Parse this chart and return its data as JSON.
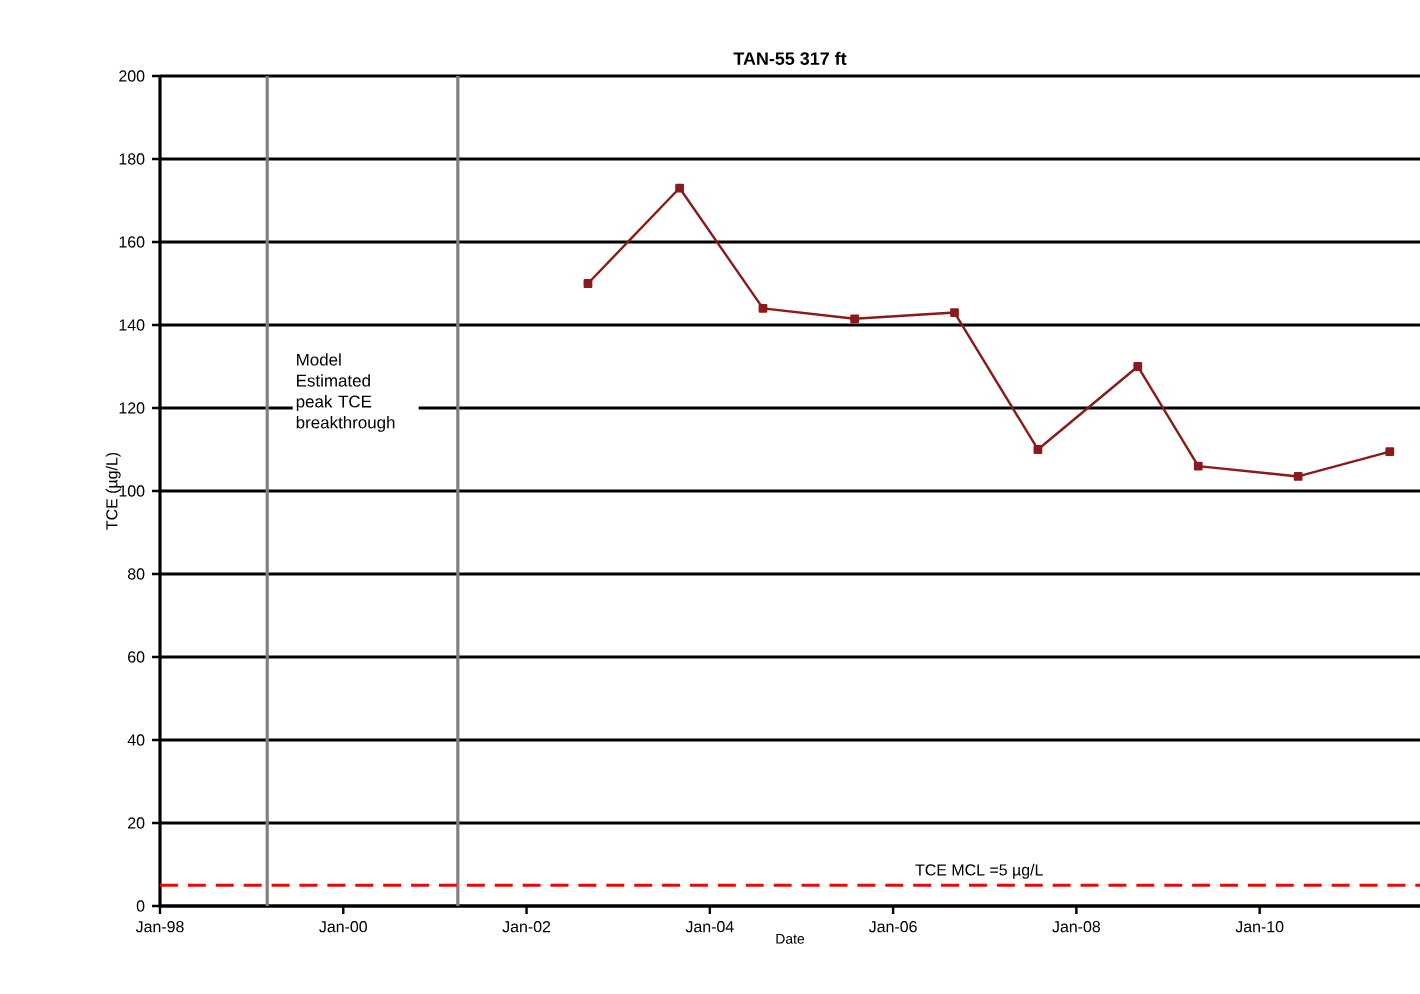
{
  "chart_data": {
    "type": "line",
    "title": "TAN-55 317 ft",
    "xlabel": "Date",
    "ylabel": "TCE (µg/L)",
    "x": [
      "2002-09",
      "2003-09",
      "2004-08",
      "2005-08",
      "2006-09",
      "2007-08",
      "2008-09",
      "2009-05",
      "2010-06",
      "2011-06"
    ],
    "series": [
      {
        "color": "#8b1a1a",
        "values": [
          150,
          173,
          144,
          141.5,
          143,
          110,
          130,
          106,
          103.5,
          109.5
        ]
      }
    ],
    "xlim": [
      "1998-01",
      "2011-10"
    ],
    "xticks": [
      {
        "value": "1998-01",
        "label": "Jan-98"
      },
      {
        "value": "2000-01",
        "label": "Jan-00"
      },
      {
        "value": "2002-01",
        "label": "Jan-02"
      },
      {
        "value": "2004-01",
        "label": "Jan-04"
      },
      {
        "value": "2006-01",
        "label": "Jan-06"
      },
      {
        "value": "2008-01",
        "label": "Jan-08"
      },
      {
        "value": "2010-01",
        "label": "Jan-10"
      }
    ],
    "ylim": [
      0,
      200
    ],
    "yticks": [
      0,
      20,
      40,
      60,
      80,
      100,
      120,
      140,
      160,
      180,
      200
    ],
    "ref_lines": [
      {
        "axis": "x",
        "value": "1999-03",
        "label": null,
        "color": "#808080"
      },
      {
        "axis": "x",
        "value": "2001-04",
        "label": null,
        "color": "#808080"
      },
      {
        "axis": "y",
        "value": 5,
        "label": "TCE MCL =5 µg/L",
        "color": "#ff0000",
        "line_style": "dashed"
      }
    ],
    "annotations": [
      "Model Estimated peak TCE breakthrough"
    ],
    "grid": "y",
    "marker": "square",
    "line_style": "solid"
  }
}
